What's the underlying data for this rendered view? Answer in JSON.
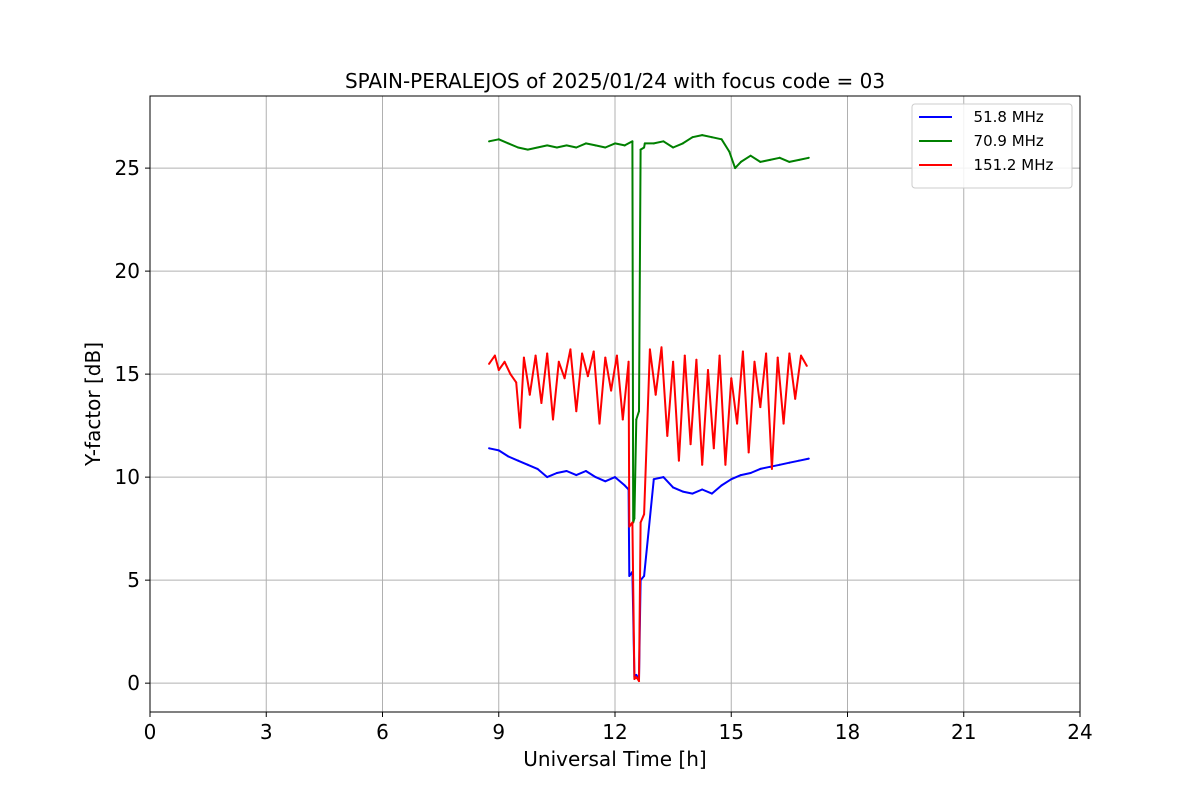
{
  "chart_data": {
    "type": "line",
    "title": "SPAIN-PERALEJOS of 2025/01/24 with focus code = 03",
    "xlabel": "Universal Time [h]",
    "ylabel": "Y-factor [dB]",
    "xlim": [
      0,
      24
    ],
    "ylim": [
      -1.4,
      28.5
    ],
    "xticks": [
      0,
      3,
      6,
      9,
      12,
      15,
      18,
      21,
      24
    ],
    "yticks": [
      0,
      5,
      10,
      15,
      20,
      25
    ],
    "grid": true,
    "legend_position": "top-right",
    "series": [
      {
        "name": "  51.8 MHz",
        "color": "#0000ff",
        "x": [
          8.75,
          9.0,
          9.25,
          9.5,
          9.75,
          10.0,
          10.25,
          10.5,
          10.75,
          11.0,
          11.25,
          11.5,
          11.75,
          12.0,
          12.25,
          12.35,
          12.37,
          12.45,
          12.5,
          12.55,
          12.62,
          12.66,
          12.75,
          13.0,
          13.25,
          13.5,
          13.75,
          14.0,
          14.25,
          14.5,
          14.75,
          15.0,
          15.25,
          15.5,
          15.75,
          16.0,
          16.25,
          16.5,
          16.75,
          17.0
        ],
        "values": [
          11.4,
          11.3,
          11.0,
          10.8,
          10.6,
          10.4,
          10.0,
          10.2,
          10.3,
          10.1,
          10.3,
          10.0,
          9.8,
          10.0,
          9.6,
          9.4,
          5.2,
          5.4,
          0.3,
          0.4,
          0.2,
          5.0,
          5.2,
          9.9,
          10.0,
          9.5,
          9.3,
          9.2,
          9.4,
          9.2,
          9.6,
          9.9,
          10.1,
          10.2,
          10.4,
          10.5,
          10.6,
          10.7,
          10.8,
          10.9
        ]
      },
      {
        "name": "  70.9 MHz",
        "color": "#008000",
        "x": [
          8.75,
          9.0,
          9.25,
          9.5,
          9.75,
          10.0,
          10.25,
          10.5,
          10.75,
          11.0,
          11.25,
          11.5,
          11.75,
          12.0,
          12.25,
          12.45,
          12.47,
          12.5,
          12.55,
          12.62,
          12.66,
          12.75,
          12.77,
          13.0,
          13.25,
          13.5,
          13.75,
          14.0,
          14.25,
          14.5,
          14.75,
          14.95,
          15.1,
          15.25,
          15.5,
          15.75,
          16.0,
          16.25,
          16.5,
          16.75,
          17.0
        ],
        "values": [
          26.3,
          26.4,
          26.2,
          26.0,
          25.9,
          26.0,
          26.1,
          26.0,
          26.1,
          26.0,
          26.2,
          26.1,
          26.0,
          26.2,
          26.1,
          26.3,
          7.8,
          8.0,
          12.8,
          13.2,
          25.9,
          26.0,
          26.2,
          26.2,
          26.3,
          26.0,
          26.2,
          26.5,
          26.6,
          26.5,
          26.4,
          25.8,
          25.0,
          25.3,
          25.6,
          25.3,
          25.4,
          25.5,
          25.3,
          25.4,
          25.5
        ]
      },
      {
        "name": "  151.2 MHz",
        "color": "#ff0000",
        "x": [
          8.75,
          8.9,
          9.0,
          9.15,
          9.3,
          9.45,
          9.55,
          9.65,
          9.8,
          9.95,
          10.1,
          10.25,
          10.4,
          10.55,
          10.7,
          10.85,
          11.0,
          11.15,
          11.3,
          11.45,
          11.6,
          11.75,
          11.9,
          12.05,
          12.2,
          12.35,
          12.37,
          12.45,
          12.5,
          12.55,
          12.62,
          12.66,
          12.75,
          12.9,
          13.05,
          13.2,
          13.35,
          13.5,
          13.65,
          13.8,
          13.95,
          14.1,
          14.25,
          14.4,
          14.55,
          14.7,
          14.85,
          15.0,
          15.15,
          15.3,
          15.45,
          15.6,
          15.75,
          15.9,
          16.05,
          16.2,
          16.35,
          16.5,
          16.65,
          16.8,
          16.95
        ],
        "values": [
          15.5,
          15.9,
          15.2,
          15.6,
          15.0,
          14.6,
          12.4,
          15.8,
          14.0,
          15.9,
          13.6,
          16.0,
          12.8,
          15.6,
          14.8,
          16.2,
          13.2,
          16.0,
          14.9,
          16.1,
          12.6,
          15.8,
          14.2,
          15.9,
          12.8,
          15.6,
          7.6,
          7.8,
          0.2,
          0.3,
          0.1,
          7.8,
          8.2,
          16.2,
          14.0,
          16.3,
          12.0,
          15.6,
          10.8,
          15.9,
          11.6,
          15.7,
          10.6,
          15.2,
          11.4,
          15.9,
          10.6,
          14.8,
          12.6,
          16.1,
          11.2,
          15.6,
          13.4,
          16.0,
          10.4,
          15.8,
          12.6,
          16.0,
          13.8,
          15.9,
          15.4
        ]
      }
    ]
  }
}
